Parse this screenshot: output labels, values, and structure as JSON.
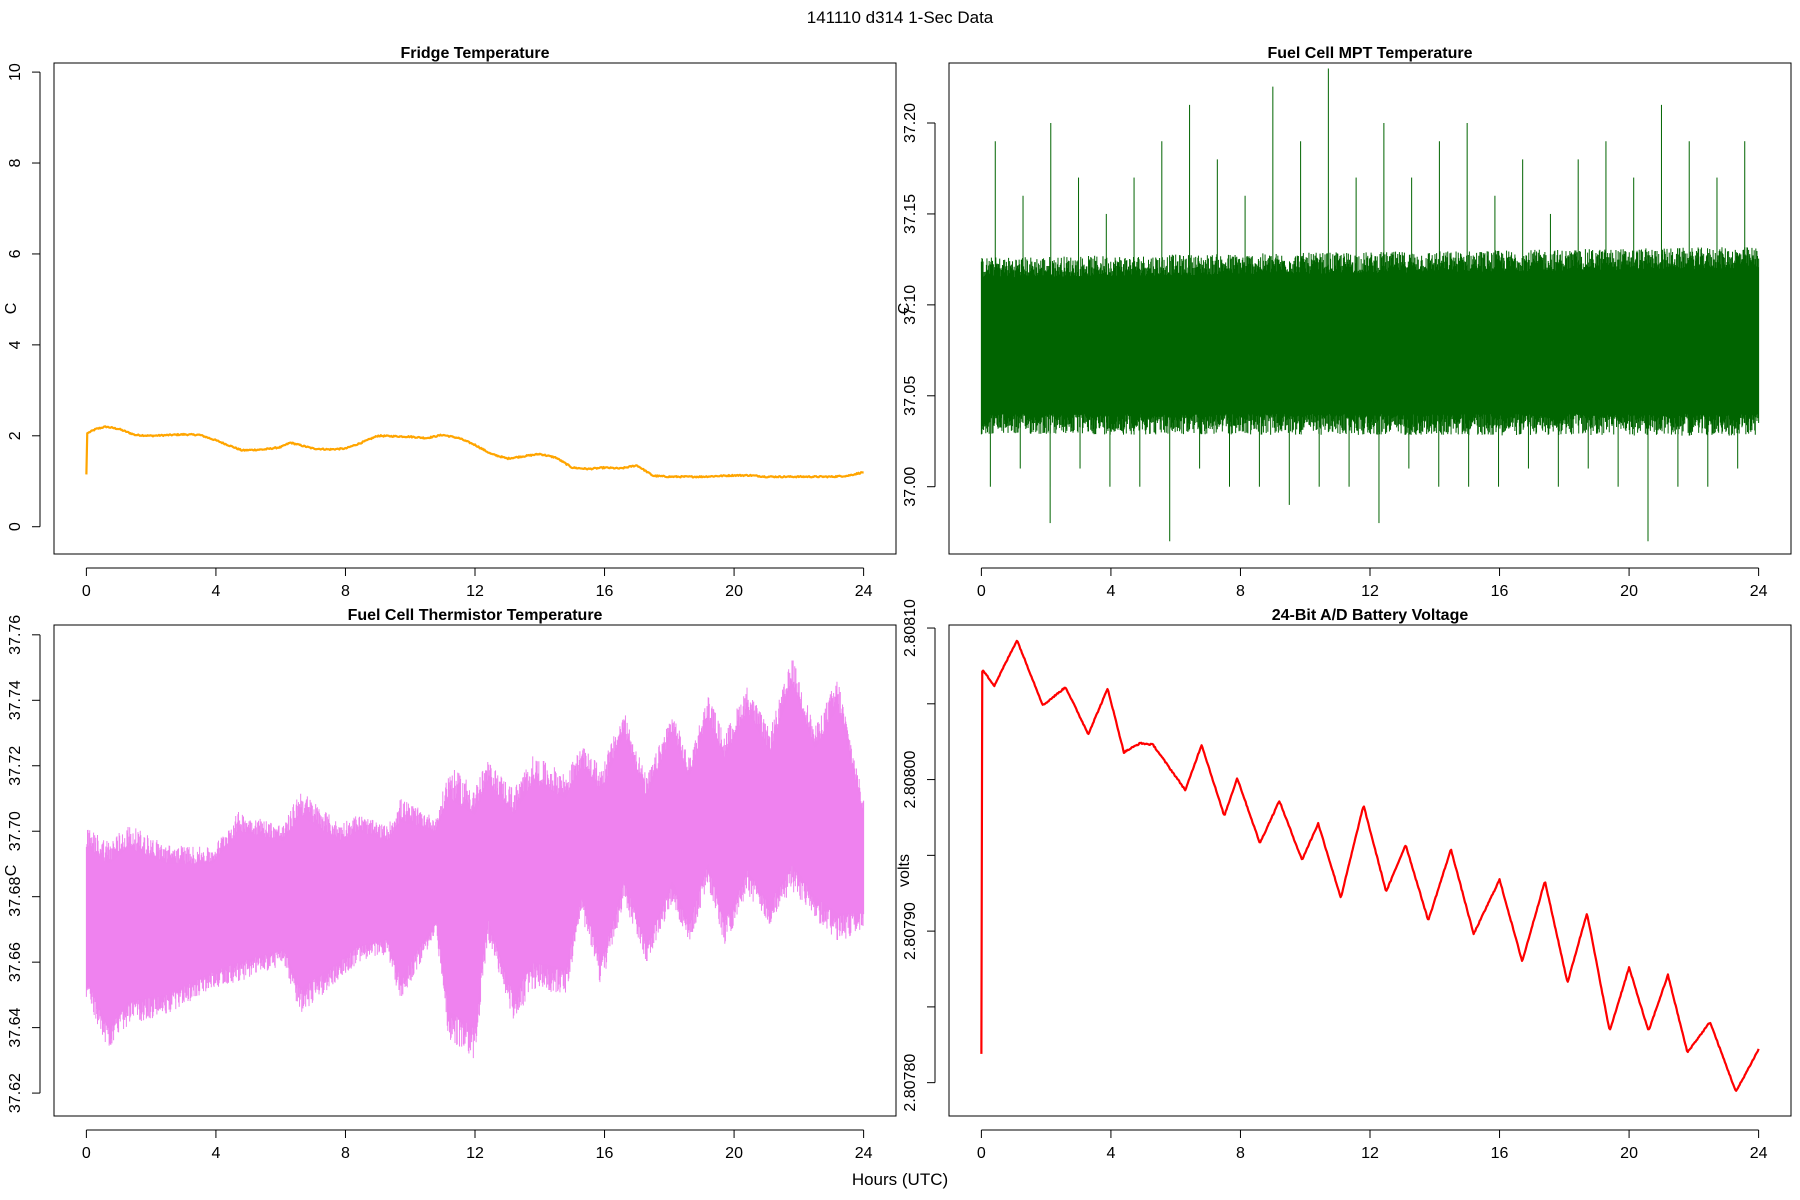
{
  "figure": {
    "title": "141110   d314   1-Sec Data",
    "xlabel": "Hours (UTC)"
  },
  "chart_data": [
    {
      "type": "line",
      "title": "Fridge Temperature",
      "xlabel": "",
      "ylabel": "C",
      "xlim": [
        -1,
        25
      ],
      "ylim": [
        -0.6,
        10.2
      ],
      "xticks": [
        "0",
        "4",
        "8",
        "12",
        "16",
        "20",
        "24"
      ],
      "yticks": [
        "0",
        "2",
        "4",
        "6",
        "8",
        "10"
      ],
      "color": "#FFA500",
      "noise_band": 0.03,
      "series": [
        {
          "name": "Fridge Temperature",
          "x": [
            0,
            0.01,
            0.3,
            0.6,
            1.0,
            1.5,
            2.0,
            3.0,
            3.5,
            4.0,
            4.8,
            5.5,
            6.0,
            6.3,
            7.0,
            7.5,
            8.0,
            8.5,
            9.0,
            10.0,
            10.5,
            11.0,
            11.5,
            12.0,
            12.5,
            13.0,
            13.5,
            14.0,
            14.5,
            15.0,
            15.5,
            16.0,
            16.5,
            17.0,
            17.5,
            18.0,
            19.0,
            20.0,
            20.5,
            21.0,
            22.0,
            23.0,
            23.5,
            24.0
          ],
          "y": [
            1.15,
            2.05,
            2.15,
            2.2,
            2.15,
            2.02,
            2.0,
            2.03,
            2.02,
            1.9,
            1.68,
            1.7,
            1.75,
            1.85,
            1.72,
            1.7,
            1.72,
            1.85,
            2.0,
            1.98,
            1.95,
            2.02,
            1.95,
            1.8,
            1.6,
            1.5,
            1.55,
            1.6,
            1.52,
            1.3,
            1.27,
            1.3,
            1.28,
            1.35,
            1.12,
            1.1,
            1.1,
            1.13,
            1.13,
            1.1,
            1.1,
            1.1,
            1.12,
            1.2
          ]
        }
      ]
    },
    {
      "type": "line",
      "title": "Fuel Cell MPT Temperature",
      "xlabel": "",
      "ylabel": "C",
      "xlim": [
        -1,
        25
      ],
      "ylim": [
        36.963,
        37.233
      ],
      "xticks": [
        "0",
        "4",
        "8",
        "12",
        "16",
        "20",
        "24"
      ],
      "yticks": [
        "37.00",
        "37.05",
        "37.10",
        "37.15",
        "37.20"
      ],
      "color": "#006400",
      "series": [
        {
          "name": "band",
          "x": [
            0,
            24
          ],
          "lower": [
            37.04,
            37.04
          ],
          "upper": [
            37.115,
            37.12
          ],
          "high_spikes": [
            37.19,
            37.16,
            37.2,
            37.17,
            37.15,
            37.17,
            37.19,
            37.21,
            37.18,
            37.16,
            37.22,
            37.19,
            37.23,
            37.17,
            37.2,
            37.17,
            37.19,
            37.2,
            37.16,
            37.18,
            37.15,
            37.18,
            37.19,
            37.17,
            37.21,
            37.19,
            37.17,
            37.19
          ],
          "low_spikes": [
            37.0,
            37.01,
            36.98,
            37.01,
            37.0,
            37.0,
            36.97,
            37.01,
            37.0,
            37.0,
            36.99,
            37.0,
            37.0,
            36.98,
            37.01,
            37.0,
            37.0,
            37.0,
            37.01,
            37.0,
            37.01,
            37.0,
            36.97,
            37.0,
            37.0,
            37.01
          ]
        }
      ]
    },
    {
      "type": "line",
      "title": "Fuel Cell Thermistor Temperature",
      "xlabel": "",
      "ylabel": "C",
      "xlim": [
        -1,
        25
      ],
      "ylim": [
        37.613,
        37.763
      ],
      "xticks": [
        "0",
        "4",
        "8",
        "12",
        "16",
        "20",
        "24"
      ],
      "yticks": [
        "37.62",
        "37.64",
        "37.66",
        "37.68",
        "37.70",
        "37.72",
        "37.74",
        "37.76"
      ],
      "color": "#EE82EE",
      "series": [
        {
          "name": "band",
          "x": [
            0,
            0.7,
            1.3,
            2.5,
            3.9,
            4.7,
            6.1,
            6.6,
            7.8,
            8.4,
            9.3,
            9.7,
            10.8,
            11.2,
            12.0,
            12.4,
            13.2,
            13.8,
            14.8,
            15.3,
            15.9,
            16.6,
            17.3,
            18.1,
            18.6,
            19.2,
            19.7,
            20.4,
            21.1,
            21.8,
            22.5,
            23.2,
            24.0
          ],
          "lower": [
            37.655,
            37.64,
            37.648,
            37.65,
            37.657,
            37.66,
            37.664,
            37.652,
            37.66,
            37.665,
            37.667,
            37.655,
            37.673,
            37.645,
            37.64,
            37.673,
            37.65,
            37.66,
            37.658,
            37.68,
            37.66,
            37.685,
            37.666,
            37.685,
            37.672,
            37.69,
            37.672,
            37.688,
            37.678,
            37.69,
            37.68,
            37.675,
            37.675
          ],
          "upper": [
            37.695,
            37.69,
            37.695,
            37.69,
            37.69,
            37.7,
            37.697,
            37.705,
            37.697,
            37.7,
            37.697,
            37.703,
            37.7,
            37.71,
            37.705,
            37.715,
            37.705,
            37.715,
            37.71,
            37.72,
            37.712,
            37.73,
            37.71,
            37.73,
            37.716,
            37.735,
            37.722,
            37.737,
            37.724,
            37.745,
            37.725,
            37.738,
            37.705
          ]
        }
      ]
    },
    {
      "type": "line",
      "title": "24-Bit A/D Battery Voltage",
      "xlabel": "",
      "ylabel": "volts",
      "xlim": [
        -1,
        25
      ],
      "ylim": [
        2.807778,
        2.808102
      ],
      "xticks": [
        "0",
        "4",
        "8",
        "12",
        "16",
        "20",
        "24"
      ],
      "yticks": [
        "2.80780",
        "2.80790",
        "2.80800",
        "2.80810"
      ],
      "yticks_minor": [
        "2.80785",
        "2.80795",
        "2.80805"
      ],
      "color": "#FF0000",
      "noise_band": 9e-07,
      "series": [
        {
          "name": "24-Bit A/D Battery Voltage",
          "x": [
            0,
            0.02,
            0.05,
            0.4,
            1.1,
            1.9,
            2.6,
            3.3,
            3.9,
            4.4,
            4.9,
            5.3,
            6.3,
            6.8,
            7.5,
            7.9,
            8.6,
            9.2,
            9.9,
            10.4,
            11.1,
            11.8,
            12.5,
            13.1,
            13.8,
            14.5,
            15.2,
            16.0,
            16.7,
            17.4,
            18.1,
            18.7,
            19.4,
            20.0,
            20.6,
            21.2,
            21.8,
            22.5,
            23.3,
            24.0
          ],
          "y": [
            2.807819,
            2.808071,
            2.808072,
            2.808062,
            2.808092,
            2.808049,
            2.808061,
            2.80803,
            2.80806,
            2.808018,
            2.808024,
            2.808023,
            2.807993,
            2.808023,
            2.807976,
            2.808001,
            2.807958,
            2.807986,
            2.807947,
            2.807971,
            2.807922,
            2.807983,
            2.807926,
            2.807957,
            2.807907,
            2.807954,
            2.807898,
            2.807934,
            2.80788,
            2.807933,
            2.807866,
            2.807912,
            2.807834,
            2.807876,
            2.807834,
            2.807871,
            2.80782,
            2.80784,
            2.807794,
            2.807822
          ]
        }
      ]
    }
  ]
}
